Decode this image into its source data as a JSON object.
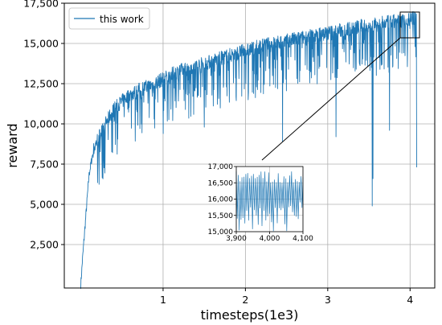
{
  "chart_data": [
    {
      "type": "line",
      "title": "",
      "xlabel": "timesteps(1e3)",
      "ylabel": "reward",
      "xlim": [
        -0.2,
        4.3
      ],
      "ylim": [
        -200,
        17500
      ],
      "x_ticks": [
        1,
        2,
        3,
        4
      ],
      "x_tick_labels": [
        "1",
        "2",
        "3",
        "4"
      ],
      "y_ticks": [
        2500,
        5000,
        7500,
        10000,
        12500,
        15000,
        17500
      ],
      "y_tick_labels": [
        "2,500",
        "5,000",
        "7,500",
        "10,000",
        "12,500",
        "15,000",
        "17,500"
      ],
      "grid": true,
      "legend": {
        "placement": "upper-left"
      },
      "series": [
        {
          "name": "this work",
          "color": "#1f77b4",
          "x": [
            0.0,
            0.02,
            0.05,
            0.08,
            0.1,
            0.15,
            0.2,
            0.3,
            0.4,
            0.5,
            0.6,
            0.7,
            0.8,
            0.9,
            1.0,
            1.2,
            1.4,
            1.6,
            1.8,
            2.0,
            2.2,
            2.4,
            2.6,
            2.8,
            3.0,
            3.2,
            3.4,
            3.6,
            3.8,
            4.0,
            4.08
          ],
          "y": [
            0,
            1500,
            3500,
            5500,
            6800,
            8300,
            9000,
            10000,
            10900,
            11400,
            11800,
            12100,
            12300,
            12500,
            12800,
            13300,
            13600,
            13900,
            14250,
            14550,
            14850,
            15050,
            15250,
            15450,
            15650,
            15850,
            16050,
            16200,
            16350,
            16500,
            16600
          ],
          "dips": [
            {
              "x": 3.54,
              "y": 4900
            },
            {
              "x": 3.55,
              "y": 6600
            },
            {
              "x": 4.08,
              "y": 7300
            },
            {
              "x": 1.0,
              "y": 9400
            },
            {
              "x": 1.5,
              "y": 9800
            },
            {
              "x": 2.45,
              "y": 8900
            },
            {
              "x": 3.1,
              "y": 9200
            },
            {
              "x": 3.75,
              "y": 9600
            }
          ]
        }
      ]
    },
    {
      "type": "line",
      "title": "",
      "xlabel": "",
      "ylabel": "",
      "xlim": [
        3900,
        4100
      ],
      "ylim": [
        15000,
        17000
      ],
      "x_ticks": [
        3900,
        4000,
        4100
      ],
      "x_tick_labels": [
        "3,900",
        "4,000",
        "4,100"
      ],
      "y_ticks": [
        15000,
        15500,
        16000,
        16500,
        17000
      ],
      "y_tick_labels": [
        "15,000",
        "15,500",
        "16,000",
        "16,500",
        "17,000"
      ],
      "grid": true,
      "series": [
        {
          "name": "",
          "color": "#1f77b4",
          "range_low": 15000,
          "range_high": 16850
        }
      ]
    }
  ]
}
